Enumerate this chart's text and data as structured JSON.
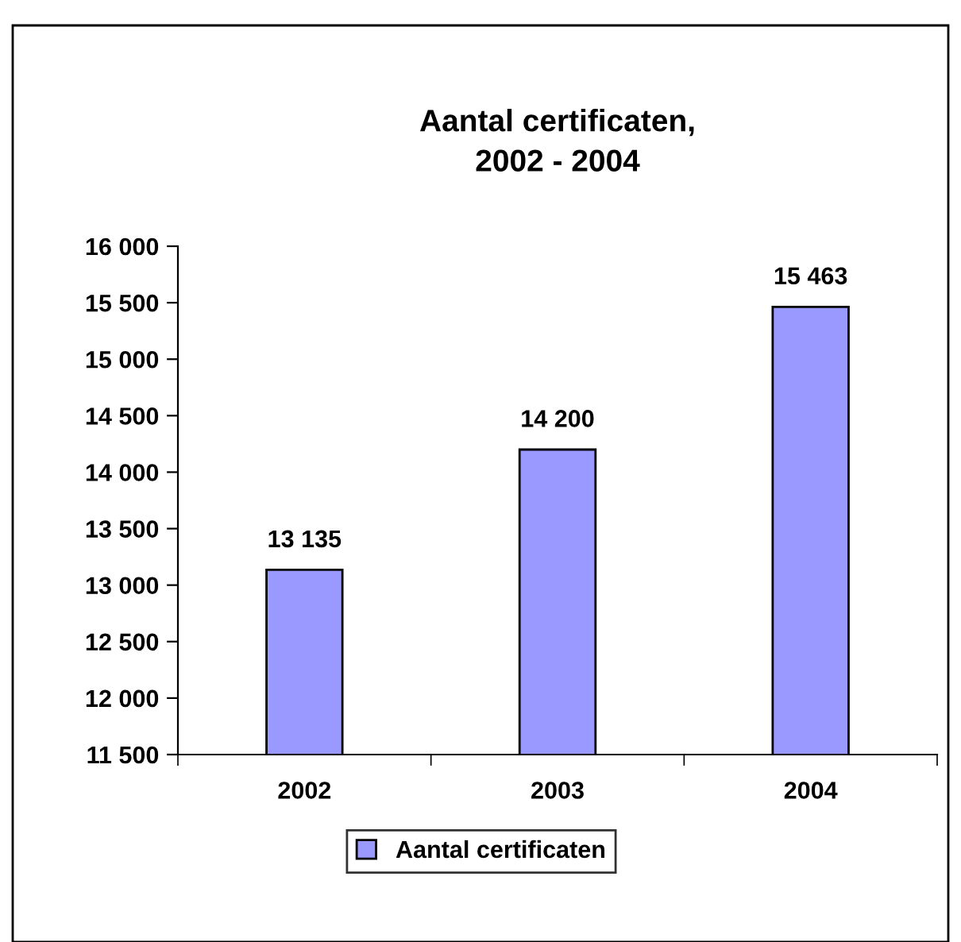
{
  "chart_data": {
    "type": "bar",
    "title": "Aantal certificaten,\n2002 - 2004",
    "categories": [
      "2002",
      "2003",
      "2004"
    ],
    "series": [
      {
        "name": "Aantal certificaten",
        "color": "#9999ff",
        "values": [
          13135,
          14200,
          15463
        ],
        "value_labels": [
          "13 135",
          "14 200",
          "15 463"
        ]
      }
    ],
    "ylim": [
      11500,
      16000
    ],
    "yticks": [
      {
        "value": 11500,
        "label": "11 500"
      },
      {
        "value": 12000,
        "label": "12 000"
      },
      {
        "value": 12500,
        "label": "12 500"
      },
      {
        "value": 13000,
        "label": "13 000"
      },
      {
        "value": 13500,
        "label": "13 500"
      },
      {
        "value": 14000,
        "label": "14 000"
      },
      {
        "value": 14500,
        "label": "14 500"
      },
      {
        "value": 15000,
        "label": "15 000"
      },
      {
        "value": 15500,
        "label": "15 500"
      },
      {
        "value": 16000,
        "label": "16 000"
      }
    ],
    "grid": false,
    "legend": "bottom"
  }
}
